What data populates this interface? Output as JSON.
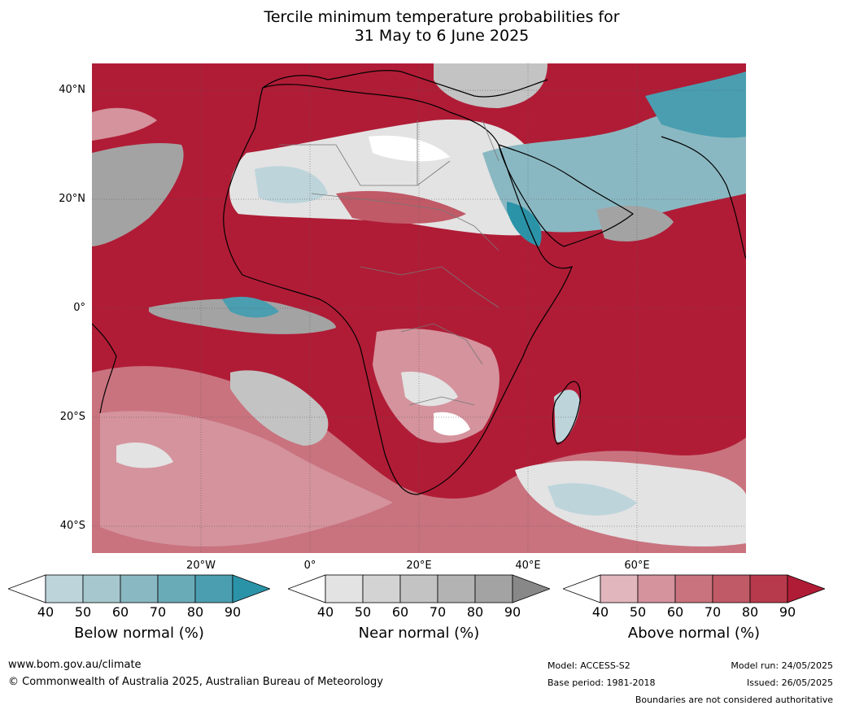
{
  "title_line1": "Tercile minimum temperature probabilities for",
  "title_line2": "31 May to 6 June 2025",
  "map": {
    "lat_labels": [
      "40°N",
      "20°N",
      "0°",
      "20°S",
      "40°S"
    ],
    "lon_labels": [
      "20°W",
      "0°",
      "20°E",
      "40°E",
      "60°E"
    ]
  },
  "colorbars": [
    {
      "title": "Below normal (%)",
      "ticks": [
        "40",
        "50",
        "60",
        "70",
        "80",
        "90"
      ],
      "colors": [
        "#ffffff",
        "#bdd4db",
        "#a6c7ce",
        "#8ab8c2",
        "#6aabb8",
        "#4a9eb0",
        "#2b93a8"
      ]
    },
    {
      "title": "Near normal (%)",
      "ticks": [
        "40",
        "50",
        "60",
        "70",
        "80",
        "90"
      ],
      "colors": [
        "#ffffff",
        "#e3e3e3",
        "#d3d3d3",
        "#c3c3c3",
        "#b3b3b3",
        "#a3a3a3",
        "#888888"
      ]
    },
    {
      "title": "Above normal (%)",
      "ticks": [
        "40",
        "50",
        "60",
        "70",
        "80",
        "90"
      ],
      "colors": [
        "#ffffff",
        "#e2b6bd",
        "#d4939d",
        "#c9737f",
        "#c05a66",
        "#b73a4c",
        "#b01c36"
      ]
    }
  ],
  "footer": {
    "website": "www.bom.gov.au/climate",
    "copyright": "© Commonwealth of Australia 2025, Australian Bureau of Meteorology",
    "model": "Model: ACCESS-S2",
    "base_period": "Base period: 1981-2018",
    "model_run": "Model run: 24/05/2025",
    "issued": "Issued: 26/05/2025",
    "disclaimer": "Boundaries are not considered authoritative"
  }
}
